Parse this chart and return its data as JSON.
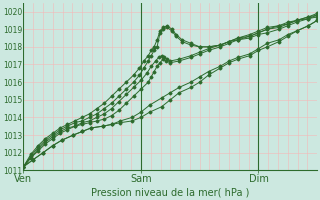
{
  "title": "Pression niveau de la mer( hPa )",
  "bg_color": "#cce8e0",
  "grid_color_v": "#f5b8b8",
  "grid_color_h": "#f5b8b8",
  "line_color": "#2d6b2d",
  "ylim": [
    1011,
    1020.5
  ],
  "yticks": [
    1011,
    1012,
    1013,
    1014,
    1015,
    1016,
    1017,
    1018,
    1019,
    1020
  ],
  "tick_color": "#2d6b2d",
  "day_labels": [
    "Ven",
    "Sam",
    "Dim"
  ],
  "day_positions": [
    0.0,
    0.4,
    0.8
  ],
  "series": [
    {
      "x": [
        0.0,
        0.033,
        0.067,
        0.1,
        0.13,
        0.17,
        0.2,
        0.23,
        0.27,
        0.3,
        0.33,
        0.37,
        0.4,
        0.43,
        0.47,
        0.5,
        0.53,
        0.57,
        0.6,
        0.63,
        0.67,
        0.7,
        0.73,
        0.77,
        0.8,
        0.83,
        0.87,
        0.9,
        0.93,
        0.97,
        1.0
      ],
      "y": [
        1011.2,
        1011.6,
        1012.0,
        1012.4,
        1012.7,
        1013.0,
        1013.2,
        1013.4,
        1013.5,
        1013.6,
        1013.7,
        1013.8,
        1014.0,
        1014.3,
        1014.6,
        1015.0,
        1015.4,
        1015.7,
        1016.0,
        1016.4,
        1016.8,
        1017.1,
        1017.3,
        1017.5,
        1017.8,
        1018.0,
        1018.3,
        1018.6,
        1018.9,
        1019.2,
        1019.5
      ]
    },
    {
      "x": [
        0.0,
        0.033,
        0.067,
        0.1,
        0.13,
        0.17,
        0.2,
        0.23,
        0.27,
        0.3,
        0.33,
        0.37,
        0.4,
        0.43,
        0.47,
        0.5,
        0.53,
        0.57,
        0.6,
        0.63,
        0.67,
        0.7,
        0.73,
        0.77,
        0.8,
        0.83,
        0.87,
        0.9,
        0.93,
        0.97,
        1.0
      ],
      "y": [
        1011.2,
        1011.6,
        1012.0,
        1012.4,
        1012.7,
        1013.0,
        1013.2,
        1013.4,
        1013.5,
        1013.6,
        1013.8,
        1014.0,
        1014.3,
        1014.7,
        1015.1,
        1015.4,
        1015.7,
        1016.0,
        1016.3,
        1016.6,
        1016.9,
        1017.2,
        1017.4,
        1017.6,
        1017.9,
        1018.2,
        1018.4,
        1018.7,
        1018.9,
        1019.2,
        1019.5
      ]
    },
    {
      "x": [
        0.0,
        0.025,
        0.05,
        0.075,
        0.1,
        0.125,
        0.15,
        0.175,
        0.2,
        0.225,
        0.25,
        0.275,
        0.3,
        0.325,
        0.35,
        0.375,
        0.4,
        0.425,
        0.435,
        0.445,
        0.455,
        0.465,
        0.475,
        0.485,
        0.5,
        0.53,
        0.57,
        0.6,
        0.63,
        0.67,
        0.7,
        0.73,
        0.77,
        0.8,
        0.83,
        0.87,
        0.9,
        0.93,
        0.97,
        1.0
      ],
      "y": [
        1011.2,
        1011.7,
        1012.1,
        1012.5,
        1012.8,
        1013.1,
        1013.3,
        1013.5,
        1013.6,
        1013.7,
        1013.8,
        1013.9,
        1014.1,
        1014.4,
        1014.8,
        1015.2,
        1015.6,
        1016.0,
        1016.3,
        1016.6,
        1016.9,
        1017.1,
        1017.3,
        1017.2,
        1017.1,
        1017.2,
        1017.4,
        1017.6,
        1017.8,
        1018.0,
        1018.2,
        1018.4,
        1018.6,
        1018.8,
        1019.0,
        1019.2,
        1019.3,
        1019.5,
        1019.6,
        1019.7
      ]
    },
    {
      "x": [
        0.0,
        0.025,
        0.05,
        0.075,
        0.1,
        0.125,
        0.15,
        0.175,
        0.2,
        0.225,
        0.25,
        0.275,
        0.3,
        0.325,
        0.35,
        0.375,
        0.4,
        0.42,
        0.435,
        0.45,
        0.46,
        0.47,
        0.48,
        0.49,
        0.5,
        0.53,
        0.57,
        0.6,
        0.63,
        0.67,
        0.7,
        0.73,
        0.77,
        0.8,
        0.83,
        0.87,
        0.9,
        0.93,
        0.97,
        1.0
      ],
      "y": [
        1011.2,
        1011.7,
        1012.2,
        1012.6,
        1012.9,
        1013.2,
        1013.4,
        1013.5,
        1013.7,
        1013.8,
        1014.0,
        1014.2,
        1014.5,
        1014.9,
        1015.3,
        1015.7,
        1016.1,
        1016.5,
        1016.9,
        1017.2,
        1017.4,
        1017.5,
        1017.4,
        1017.3,
        1017.2,
        1017.3,
        1017.5,
        1017.7,
        1017.9,
        1018.1,
        1018.3,
        1018.5,
        1018.7,
        1018.9,
        1019.1,
        1019.2,
        1019.4,
        1019.5,
        1019.7,
        1019.8
      ]
    },
    {
      "x": [
        0.0,
        0.025,
        0.05,
        0.075,
        0.1,
        0.125,
        0.15,
        0.175,
        0.2,
        0.225,
        0.25,
        0.275,
        0.3,
        0.325,
        0.35,
        0.375,
        0.395,
        0.41,
        0.425,
        0.435,
        0.445,
        0.455,
        0.465,
        0.475,
        0.49,
        0.505,
        0.52,
        0.54,
        0.57,
        0.6,
        0.63,
        0.67,
        0.7,
        0.73,
        0.77,
        0.8,
        0.83,
        0.87,
        0.9,
        0.93,
        0.97,
        1.0
      ],
      "y": [
        1011.2,
        1011.8,
        1012.3,
        1012.7,
        1013.0,
        1013.3,
        1013.5,
        1013.7,
        1013.8,
        1014.0,
        1014.2,
        1014.5,
        1014.8,
        1015.2,
        1015.6,
        1016.0,
        1016.4,
        1016.8,
        1017.2,
        1017.5,
        1017.8,
        1018.0,
        1018.8,
        1019.0,
        1019.1,
        1018.9,
        1018.6,
        1018.3,
        1018.1,
        1018.0,
        1018.0,
        1018.1,
        1018.3,
        1018.4,
        1018.5,
        1018.7,
        1018.8,
        1019.0,
        1019.2,
        1019.4,
        1019.6,
        1019.8
      ]
    },
    {
      "x": [
        0.0,
        0.025,
        0.05,
        0.075,
        0.1,
        0.125,
        0.15,
        0.175,
        0.2,
        0.225,
        0.25,
        0.275,
        0.3,
        0.325,
        0.35,
        0.375,
        0.395,
        0.41,
        0.425,
        0.435,
        0.445,
        0.455,
        0.465,
        0.475,
        0.49,
        0.505,
        0.52,
        0.54,
        0.57,
        0.6,
        0.63,
        0.67,
        0.7,
        0.73,
        0.77,
        0.8,
        0.83,
        0.87,
        0.9,
        0.93,
        0.97,
        1.0
      ],
      "y": [
        1011.2,
        1011.9,
        1012.4,
        1012.8,
        1013.1,
        1013.4,
        1013.6,
        1013.8,
        1014.0,
        1014.2,
        1014.5,
        1014.8,
        1015.2,
        1015.6,
        1016.0,
        1016.4,
        1016.8,
        1017.2,
        1017.5,
        1017.8,
        1018.0,
        1018.4,
        1018.9,
        1019.1,
        1019.2,
        1019.0,
        1018.7,
        1018.4,
        1018.2,
        1018.0,
        1018.0,
        1018.1,
        1018.3,
        1018.5,
        1018.6,
        1018.8,
        1019.0,
        1019.1,
        1019.3,
        1019.5,
        1019.7,
        1019.9
      ]
    }
  ],
  "figwidth": 3.2,
  "figheight": 2.0,
  "dpi": 100
}
